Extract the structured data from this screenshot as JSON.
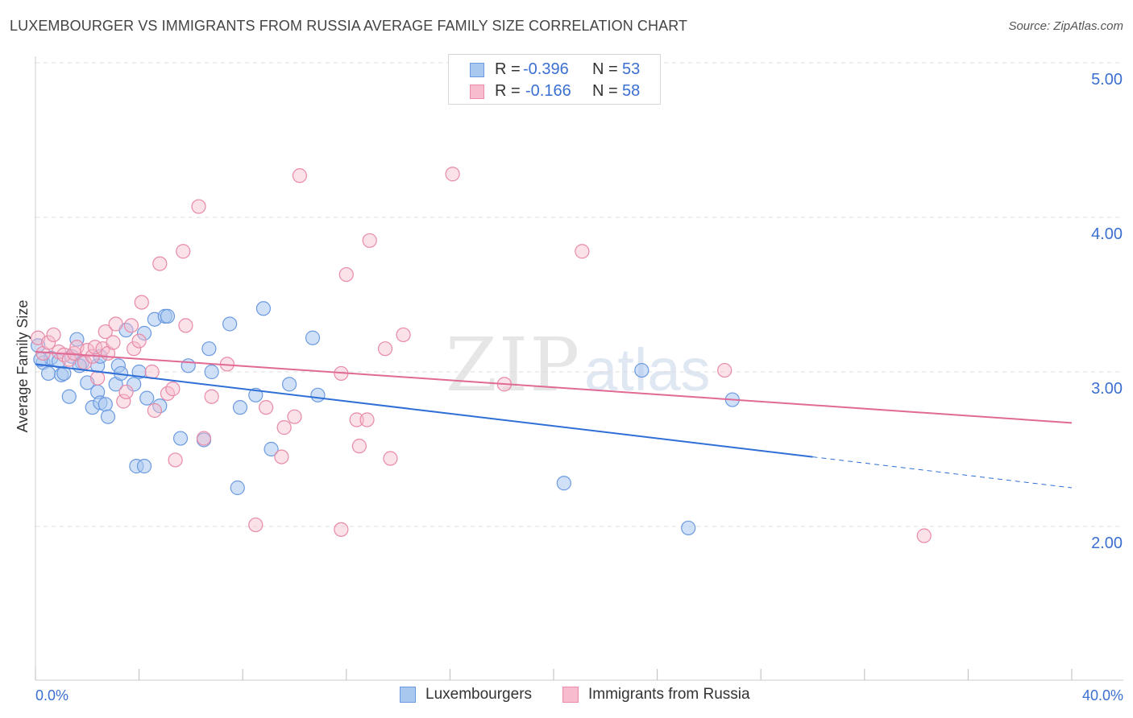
{
  "title": "LUXEMBOURGER VS IMMIGRANTS FROM RUSSIA AVERAGE FAMILY SIZE CORRELATION CHART",
  "source": "Source: ZipAtlas.com",
  "watermark": {
    "zip": "ZIP",
    "atlas": "atlas"
  },
  "legend": {
    "rows": [
      {
        "r_label": "R =",
        "r_value": "-0.396",
        "n_label": "N =",
        "n_value": "53"
      },
      {
        "r_label": "R =",
        "r_value": "-0.166",
        "n_label": "N =",
        "n_value": "58"
      }
    ]
  },
  "colors": {
    "blue_fill": "#a9c8f0",
    "blue_stroke": "#6b9ae0",
    "blue_line": "#2f6fd6",
    "pink_fill": "#f7bccd",
    "pink_stroke": "#e88aa8",
    "pink_line": "#e06a94",
    "grid": "#dddddd",
    "axis_text": "#3b6fd1"
  },
  "chart_data": {
    "type": "scatter",
    "title": "LUXEMBOURGER VS IMMIGRANTS FROM RUSSIA AVERAGE FAMILY SIZE CORRELATION CHART",
    "xlabel": "",
    "ylabel": "Average Family Size",
    "xlim": [
      0,
      40
    ],
    "ylim": [
      1.0,
      5.15
    ],
    "x_tick_labels": [
      "0.0%",
      "40.0%"
    ],
    "y_ticks": [
      2.0,
      3.0,
      4.0,
      5.0
    ],
    "y_tick_labels": [
      "2.00",
      "3.00",
      "4.00",
      "5.00"
    ],
    "grid": true,
    "series": [
      {
        "name": "Luxembourgers",
        "r": -0.396,
        "n": 53,
        "trend": {
          "x0": 0,
          "y0": 3.05,
          "x1": 30,
          "y1": 2.45,
          "dash_to_x": 40,
          "dash_to_y": 2.25
        },
        "points": [
          [
            0.1,
            3.17
          ],
          [
            0.3,
            3.06
          ],
          [
            0.5,
            2.99
          ],
          [
            0.6,
            3.09
          ],
          [
            0.9,
            3.07
          ],
          [
            1.0,
            2.98
          ],
          [
            1.1,
            2.99
          ],
          [
            1.3,
            2.84
          ],
          [
            1.4,
            3.1
          ],
          [
            1.6,
            3.21
          ],
          [
            1.8,
            3.06
          ],
          [
            2.0,
            2.93
          ],
          [
            2.2,
            2.77
          ],
          [
            2.4,
            2.87
          ],
          [
            2.5,
            2.8
          ],
          [
            2.7,
            2.79
          ],
          [
            2.8,
            2.71
          ],
          [
            2.4,
            3.04
          ],
          [
            2.5,
            3.1
          ],
          [
            3.1,
            2.92
          ],
          [
            3.2,
            3.04
          ],
          [
            3.3,
            2.99
          ],
          [
            3.5,
            3.27
          ],
          [
            3.8,
            2.92
          ],
          [
            3.9,
            2.39
          ],
          [
            4.0,
            3.0
          ],
          [
            4.2,
            2.39
          ],
          [
            4.3,
            2.83
          ],
          [
            4.2,
            3.25
          ],
          [
            4.6,
            3.34
          ],
          [
            4.8,
            2.78
          ],
          [
            5.0,
            3.36
          ],
          [
            5.1,
            3.36
          ],
          [
            5.6,
            2.57
          ],
          [
            5.9,
            3.04
          ],
          [
            6.5,
            2.56
          ],
          [
            6.7,
            3.15
          ],
          [
            6.8,
            3.0
          ],
          [
            7.5,
            3.31
          ],
          [
            7.8,
            2.25
          ],
          [
            7.9,
            2.77
          ],
          [
            8.5,
            2.85
          ],
          [
            8.8,
            3.41
          ],
          [
            9.1,
            2.5
          ],
          [
            9.8,
            2.92
          ],
          [
            10.7,
            3.22
          ],
          [
            10.9,
            2.85
          ],
          [
            20.4,
            2.28
          ],
          [
            23.4,
            3.01
          ],
          [
            25.2,
            1.99
          ],
          [
            26.9,
            2.82
          ],
          [
            0.2,
            3.08
          ],
          [
            1.7,
            3.04
          ]
        ]
      },
      {
        "name": "Immigrants from Russia",
        "r": -0.166,
        "n": 58,
        "trend": {
          "x0": 0,
          "y0": 3.13,
          "x1": 40,
          "y1": 2.67
        },
        "points": [
          [
            0.1,
            3.22
          ],
          [
            0.3,
            3.12
          ],
          [
            0.5,
            3.19
          ],
          [
            0.7,
            3.24
          ],
          [
            0.9,
            3.13
          ],
          [
            1.1,
            3.11
          ],
          [
            1.3,
            3.08
          ],
          [
            1.5,
            3.12
          ],
          [
            1.6,
            3.16
          ],
          [
            1.9,
            3.06
          ],
          [
            2.0,
            3.14
          ],
          [
            2.2,
            3.1
          ],
          [
            2.3,
            3.16
          ],
          [
            2.4,
            2.96
          ],
          [
            2.6,
            3.15
          ],
          [
            2.7,
            3.26
          ],
          [
            2.8,
            3.12
          ],
          [
            3.0,
            3.19
          ],
          [
            3.1,
            3.31
          ],
          [
            3.4,
            2.81
          ],
          [
            3.5,
            2.87
          ],
          [
            3.7,
            3.3
          ],
          [
            3.8,
            3.15
          ],
          [
            4.0,
            3.2
          ],
          [
            4.1,
            3.45
          ],
          [
            4.5,
            3.0
          ],
          [
            4.6,
            2.75
          ],
          [
            4.8,
            3.7
          ],
          [
            5.1,
            2.86
          ],
          [
            5.3,
            2.89
          ],
          [
            5.4,
            2.43
          ],
          [
            5.7,
            3.78
          ],
          [
            5.8,
            3.3
          ],
          [
            6.3,
            4.07
          ],
          [
            6.5,
            2.57
          ],
          [
            6.8,
            2.84
          ],
          [
            7.4,
            3.05
          ],
          [
            8.5,
            2.01
          ],
          [
            8.9,
            2.77
          ],
          [
            9.5,
            2.45
          ],
          [
            9.6,
            2.64
          ],
          [
            10.0,
            2.71
          ],
          [
            10.2,
            4.27
          ],
          [
            11.8,
            1.98
          ],
          [
            11.8,
            2.99
          ],
          [
            12.0,
            3.63
          ],
          [
            12.4,
            2.69
          ],
          [
            12.5,
            2.52
          ],
          [
            12.8,
            2.69
          ],
          [
            12.9,
            3.85
          ],
          [
            13.5,
            3.15
          ],
          [
            13.7,
            2.44
          ],
          [
            14.2,
            3.24
          ],
          [
            16.1,
            4.28
          ],
          [
            18.1,
            2.92
          ],
          [
            21.1,
            3.78
          ],
          [
            26.6,
            3.01
          ],
          [
            34.3,
            1.94
          ]
        ]
      }
    ]
  },
  "bottom_legend": {
    "items": [
      {
        "label": "Luxembourgers"
      },
      {
        "label": "Immigrants from Russia"
      }
    ]
  }
}
